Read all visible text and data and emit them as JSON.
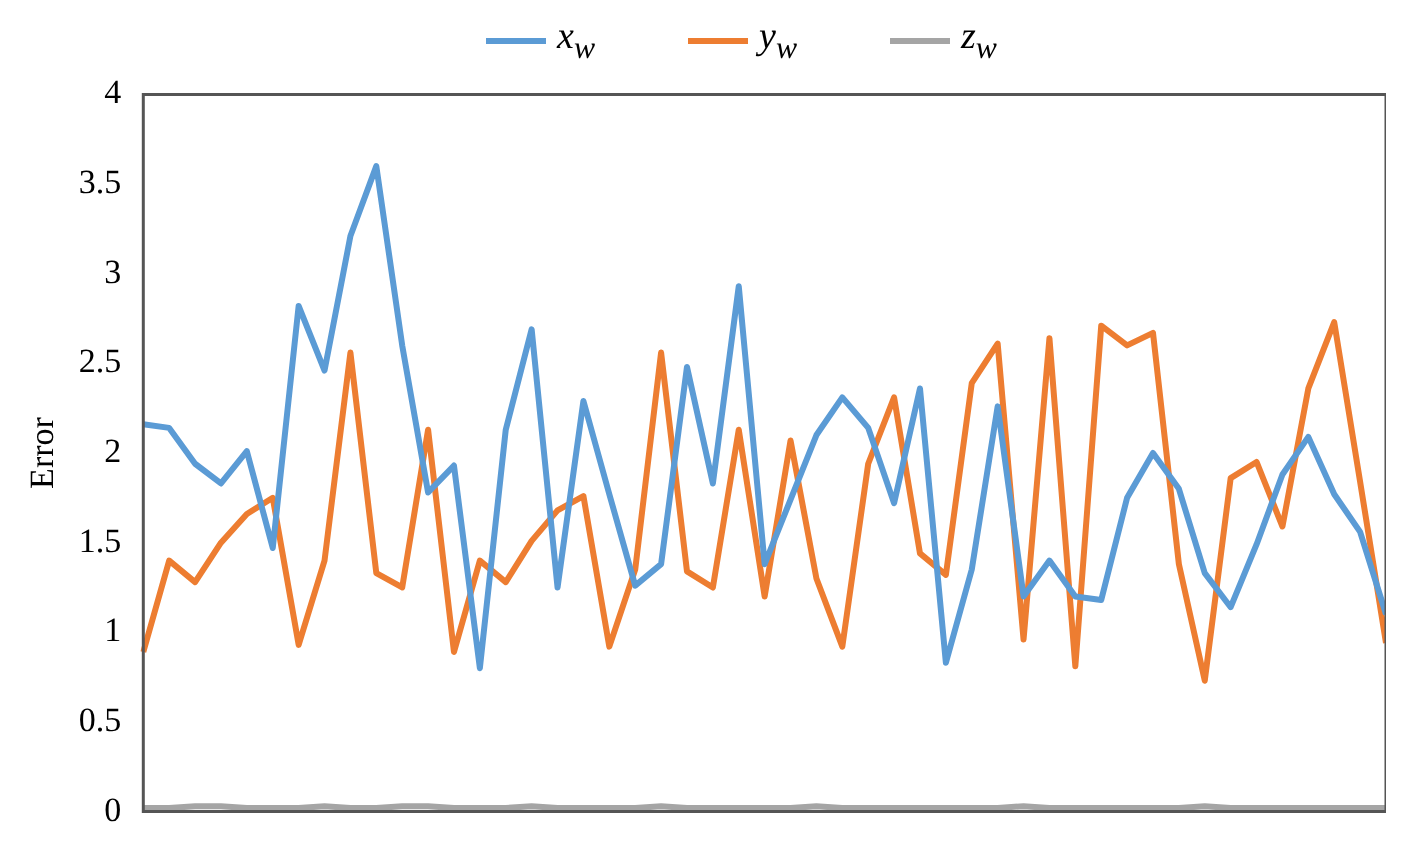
{
  "chart_data": {
    "type": "line",
    "ylabel": "Error",
    "legend": "top",
    "grid": false,
    "marker": "none",
    "line_style": "solid",
    "categories": [
      null,
      null,
      null,
      null,
      null,
      null,
      null,
      null,
      null,
      null,
      null,
      null,
      null,
      null,
      null,
      null,
      null,
      null,
      null,
      null,
      null,
      null,
      null,
      null,
      null,
      null,
      null,
      null,
      null,
      null,
      null,
      null,
      null,
      null,
      null,
      null,
      null,
      null,
      null,
      null,
      null,
      null,
      null,
      null,
      null,
      null,
      null,
      null,
      null
    ],
    "tick_labels": "y",
    "ylim": [
      0,
      4
    ],
    "yticks": [
      0,
      0.5,
      1,
      1.5,
      2,
      2.5,
      3,
      3.5,
      4
    ],
    "series": [
      {
        "name": "x$_{w}$",
        "color": "#5b9bd5",
        "values": [
          2.16,
          2.14,
          1.94,
          1.83,
          2.01,
          1.47,
          2.82,
          2.46,
          3.21,
          3.6,
          2.6,
          1.78,
          1.93,
          0.8,
          2.13,
          2.69,
          1.25,
          2.29,
          1.77,
          1.26,
          1.38,
          2.48,
          1.83,
          2.93,
          1.38,
          1.74,
          2.1,
          2.31,
          2.14,
          1.72,
          2.36,
          0.83,
          1.35,
          2.26,
          1.2,
          1.4,
          1.2,
          1.18,
          1.75,
          2.0,
          1.8,
          1.33,
          1.14,
          1.49,
          1.88,
          2.09,
          1.77,
          1.56,
          1.1
        ]
      },
      {
        "name": "y$_{w}$",
        "color": "#ed7d31",
        "values": [
          0.89,
          1.4,
          1.28,
          1.5,
          1.66,
          1.75,
          0.93,
          1.4,
          2.56,
          1.33,
          1.25,
          2.13,
          0.89,
          1.4,
          1.28,
          1.51,
          1.68,
          1.76,
          0.92,
          1.35,
          2.56,
          1.34,
          1.25,
          2.13,
          1.2,
          2.07,
          1.3,
          0.92,
          1.94,
          2.31,
          1.44,
          1.32,
          2.39,
          2.61,
          0.96,
          2.64,
          0.81,
          2.71,
          2.6,
          2.67,
          1.38,
          0.73,
          1.86,
          1.95,
          1.59,
          2.36,
          2.73,
          1.84,
          0.94
        ]
      },
      {
        "name": "z$_{w}$",
        "color": "#a5a5a5",
        "values": [
          0.02,
          0.02,
          0.03,
          0.03,
          0.02,
          0.02,
          0.02,
          0.03,
          0.02,
          0.02,
          0.03,
          0.03,
          0.02,
          0.02,
          0.02,
          0.03,
          0.02,
          0.02,
          0.02,
          0.02,
          0.03,
          0.02,
          0.02,
          0.02,
          0.02,
          0.02,
          0.03,
          0.02,
          0.02,
          0.02,
          0.02,
          0.02,
          0.02,
          0.02,
          0.03,
          0.02,
          0.02,
          0.02,
          0.02,
          0.02,
          0.02,
          0.03,
          0.02,
          0.02,
          0.02,
          0.02,
          0.02,
          0.02,
          0.02
        ]
      }
    ]
  }
}
